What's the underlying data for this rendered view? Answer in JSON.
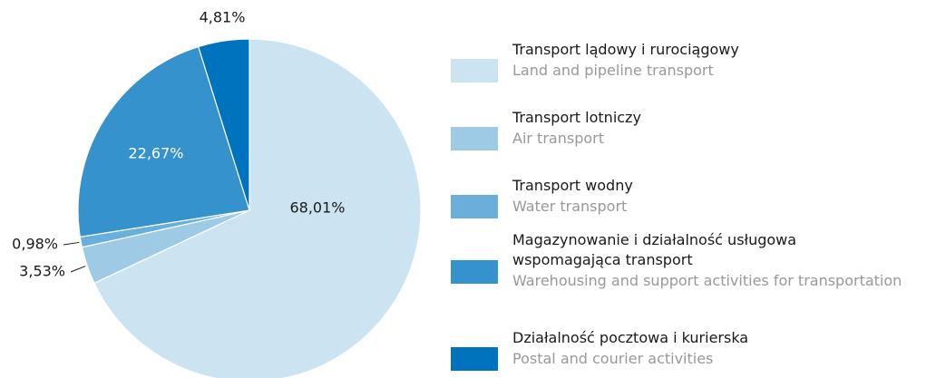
{
  "chart_data": {
    "type": "pie",
    "categories": [
      "Transport lądowy i rurociągowy",
      "Transport lotniczy",
      "Transport wodny",
      "Magazynowanie i działalność usługowa wspomagająca transport",
      "Działalność pocztowa i kurierska"
    ],
    "categories_en": [
      "Land and pipeline transport",
      "Air transport",
      "Water transport",
      "Warehousing and support activities for transportation",
      "Postal and courier activities"
    ],
    "values": [
      68.01,
      3.53,
      0.98,
      22.67,
      4.81
    ],
    "value_labels": [
      "68,01%",
      "3,53%",
      "0,98%",
      "22,67%",
      "4,81%"
    ],
    "colors": [
      "#cce3f1",
      "#9fcae6",
      "#6aafdb",
      "#3592cd",
      "#0073bf"
    ]
  }
}
